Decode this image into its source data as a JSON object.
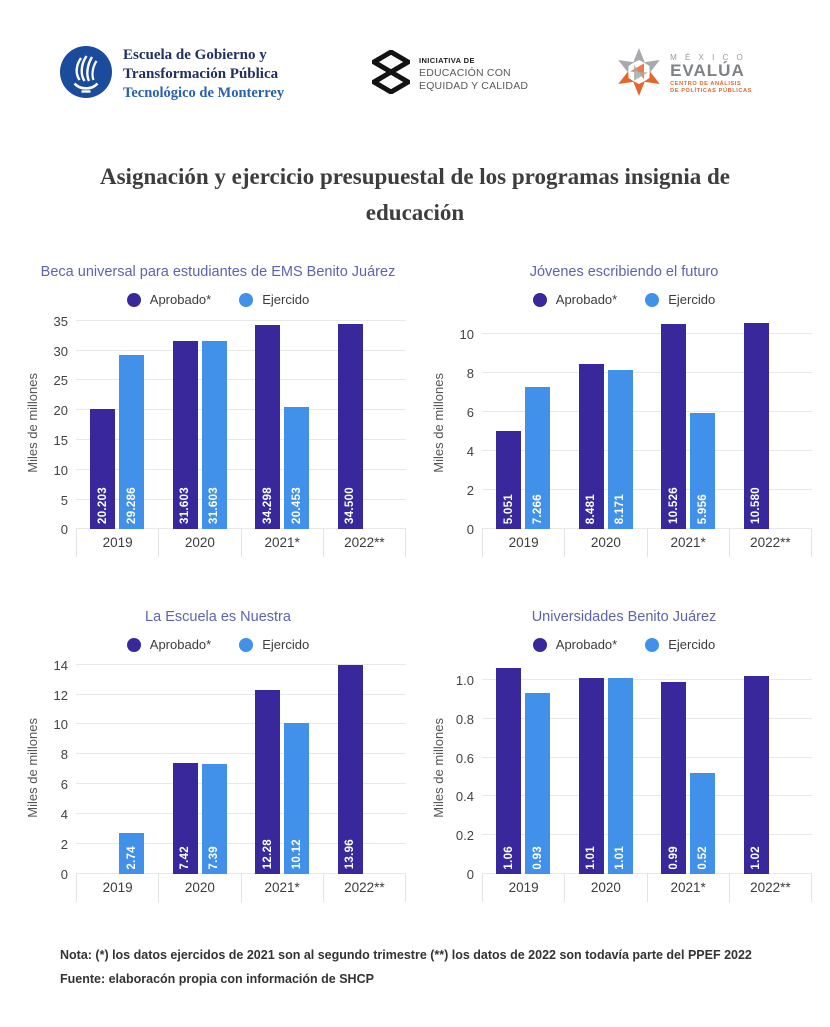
{
  "header": {
    "tec": {
      "line1": "Escuela de Gobierno y",
      "line2": "Transformación Pública",
      "line3": "Tecnológico de Monterrey"
    },
    "eec": {
      "line1": "INICIATIVA DE",
      "line2": "EDUCACIÓN CON",
      "line3": "EQUIDAD Y CALIDAD"
    },
    "evalua": {
      "line1": "M É X I C O",
      "line2": "EVALÚA",
      "line3": "CENTRO DE ANÁLISIS",
      "line4": "DE POLÍTICAS PÚBLICAS"
    }
  },
  "title": "Asignación y ejercicio presupuestal de los programas insignia de educación",
  "colors": {
    "aprobado": "#38289B",
    "ejercido": "#4190EA",
    "chart_title": "#5F63AD"
  },
  "chart_data": [
    {
      "type": "bar",
      "title": "Beca universal para estudiantes de EMS Benito Juárez",
      "ylabel": "Miles de millones",
      "categories": [
        "2019",
        "2020",
        "2021*",
        "2022**"
      ],
      "yticks": [
        0,
        5,
        10,
        15,
        20,
        25,
        30,
        35
      ],
      "ytick_labels": [
        "0",
        "5",
        "10",
        "15",
        "20",
        "25",
        "30",
        "35"
      ],
      "ylim": [
        0,
        35
      ],
      "scale_max": 35.6,
      "grid": true,
      "legend_position": "top",
      "series": [
        {
          "name": "Aprobado*",
          "color": "#38289B",
          "values": [
            20.203,
            31.603,
            34.298,
            34.5
          ],
          "labels": [
            "20.203",
            "31.603",
            "34.298",
            "34.500"
          ]
        },
        {
          "name": "Ejercido",
          "color": "#4190EA",
          "values": [
            29.286,
            31.603,
            20.453,
            null
          ],
          "labels": [
            "29.286",
            "31.603",
            "20.453",
            null
          ]
        }
      ]
    },
    {
      "type": "bar",
      "title": "Jóvenes escribiendo el futuro",
      "ylabel": "Miles de millones",
      "categories": [
        "2019",
        "2020",
        "2021*",
        "2022**"
      ],
      "yticks": [
        0,
        2,
        4,
        6,
        8,
        10
      ],
      "ytick_labels": [
        "0",
        "2",
        "4",
        "6",
        "8",
        "10"
      ],
      "ylim": [
        0,
        10
      ],
      "scale_max": 10.85,
      "grid": true,
      "legend_position": "top",
      "series": [
        {
          "name": "Aprobado*",
          "color": "#38289B",
          "values": [
            5.051,
            8.481,
            10.526,
            10.58
          ],
          "labels": [
            "5.051",
            "8.481",
            "10.526",
            "10.580"
          ]
        },
        {
          "name": "Ejercido",
          "color": "#4190EA",
          "values": [
            7.266,
            8.171,
            5.956,
            null
          ],
          "labels": [
            "7.266",
            "8.171",
            "5.956",
            null
          ]
        }
      ]
    },
    {
      "type": "bar",
      "title": "La Escuela es Nuestra",
      "ylabel": "Miles de millones",
      "categories": [
        "2019",
        "2020",
        "2021*",
        "2022**"
      ],
      "yticks": [
        0,
        2,
        4,
        6,
        8,
        10,
        12,
        14
      ],
      "ytick_labels": [
        "0",
        "2",
        "4",
        "6",
        "8",
        "10",
        "12",
        "14"
      ],
      "ylim": [
        0,
        14
      ],
      "scale_max": 14.15,
      "grid": true,
      "legend_position": "top",
      "series": [
        {
          "name": "Aprobado*",
          "color": "#38289B",
          "values": [
            null,
            7.42,
            12.28,
            13.96
          ],
          "labels": [
            null,
            "7.42",
            "12.28",
            "13.96"
          ]
        },
        {
          "name": "Ejercido",
          "color": "#4190EA",
          "values": [
            2.74,
            7.39,
            10.12,
            null
          ],
          "labels": [
            "2.74",
            "7.39",
            "10.12",
            null
          ]
        }
      ]
    },
    {
      "type": "bar",
      "title": "Universidades Benito Juárez",
      "ylabel": "Miles de millones",
      "categories": [
        "2019",
        "2020",
        "2021*",
        "2022**"
      ],
      "yticks": [
        0,
        0.2,
        0.4,
        0.6,
        0.8,
        1.0
      ],
      "ytick_labels": [
        "0",
        "0.2",
        "0.4",
        "0.6",
        "0.8",
        "1.0"
      ],
      "ylim": [
        0,
        1.0
      ],
      "scale_max": 1.09,
      "grid": true,
      "legend_position": "top",
      "series": [
        {
          "name": "Aprobado*",
          "color": "#38289B",
          "values": [
            1.06,
            1.01,
            0.99,
            1.02
          ],
          "labels": [
            "1.06",
            "1.01",
            "0.99",
            "1.02"
          ]
        },
        {
          "name": "Ejercido",
          "color": "#4190EA",
          "values": [
            0.93,
            1.01,
            0.52,
            null
          ],
          "labels": [
            "0.93",
            "1.01",
            "0.52",
            null
          ]
        }
      ]
    }
  ],
  "footer": {
    "note": "Nota:  (*)  los datos ejercidos de 2021 son al segundo trimestre  (**) los datos de 2022 son todavía parte del PPEF 2022",
    "source": "Fuente: elaboracón propia con información de SHCP"
  }
}
